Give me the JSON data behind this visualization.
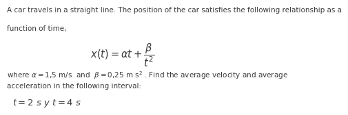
{
  "bg_color": "#ffffff",
  "text_color": "#3a3a3a",
  "line1": "A car travels in a straight line. The position of the car satisfies the following relationship as a",
  "line2": "function of time,",
  "formula": "$x(t) = \\alpha t + \\dfrac{\\beta}{t^2}$",
  "where_line": "where $\\alpha = 1{,}5$ m/s  and  $\\beta = 0{,}25$ m s$^{2}$ . Find the average velocity and average",
  "accel_line": "acceleration in the following interval:",
  "interval_line": "$t = 2$ s y $t = 4$ s",
  "fontsize_body": 7.5,
  "fontsize_formula": 10.5,
  "fontsize_interval": 9.5
}
